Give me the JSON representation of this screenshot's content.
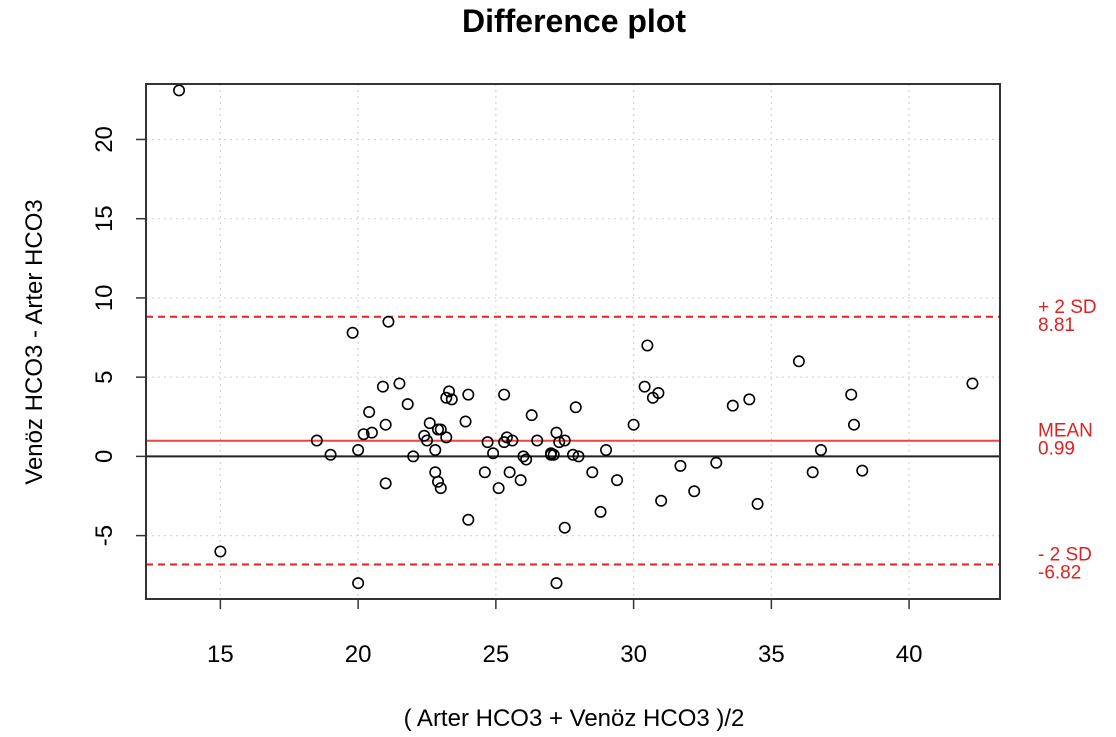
{
  "chart_data": {
    "type": "scatter",
    "title": "Difference plot",
    "xlabel": "( Arter HCO3 + Venöz HCO3 )/2",
    "ylabel": "Venöz HCO3 - Arter HCO3",
    "xlim": [
      12.3,
      43.3
    ],
    "ylim": [
      -9.0,
      23.5
    ],
    "x_ticks": [
      15,
      20,
      25,
      30,
      35,
      40
    ],
    "y_ticks": [
      -5,
      0,
      5,
      10,
      15,
      20
    ],
    "x_tick_labels": [
      "15",
      "20",
      "25",
      "30",
      "35",
      "40"
    ],
    "y_tick_labels": [
      "-5",
      "0",
      "5",
      "10",
      "15",
      "20"
    ],
    "grid": true,
    "zero_line": 0,
    "reference_lines": [
      {
        "label": "+ 2 SD",
        "value_text": "8.81",
        "value": 8.81,
        "style": "dashed",
        "color": "#dd2222"
      },
      {
        "label": "MEAN",
        "value_text": "0.99",
        "value": 0.99,
        "style": "solid",
        "color": "#ee4444"
      },
      {
        "label": "- 2 SD",
        "value_text": "-6.82",
        "value": -6.82,
        "style": "dashed",
        "color": "#dd2222"
      }
    ],
    "points": [
      [
        13.5,
        23.1
      ],
      [
        15.0,
        -6.0
      ],
      [
        18.5,
        1.0
      ],
      [
        19.0,
        0.1
      ],
      [
        19.8,
        7.8
      ],
      [
        20.0,
        0.4
      ],
      [
        20.0,
        -8.0
      ],
      [
        20.2,
        1.4
      ],
      [
        20.4,
        2.8
      ],
      [
        20.5,
        1.5
      ],
      [
        20.9,
        4.4
      ],
      [
        21.0,
        2.0
      ],
      [
        21.0,
        -1.7
      ],
      [
        21.1,
        8.5
      ],
      [
        21.5,
        4.6
      ],
      [
        21.8,
        3.3
      ],
      [
        22.0,
        0.0
      ],
      [
        22.4,
        1.3
      ],
      [
        22.5,
        1.0
      ],
      [
        22.6,
        2.1
      ],
      [
        22.8,
        0.4
      ],
      [
        22.8,
        -1.0
      ],
      [
        22.9,
        -1.6
      ],
      [
        22.9,
        1.7
      ],
      [
        23.0,
        1.7
      ],
      [
        23.0,
        -2.0
      ],
      [
        23.2,
        3.7
      ],
      [
        23.2,
        1.2
      ],
      [
        23.3,
        4.1
      ],
      [
        23.4,
        3.6
      ],
      [
        23.9,
        2.2
      ],
      [
        24.0,
        3.9
      ],
      [
        24.0,
        -4.0
      ],
      [
        24.6,
        -1.0
      ],
      [
        24.7,
        0.9
      ],
      [
        24.9,
        0.2
      ],
      [
        25.1,
        -2.0
      ],
      [
        25.3,
        3.9
      ],
      [
        25.3,
        0.9
      ],
      [
        25.4,
        1.2
      ],
      [
        25.5,
        -1.0
      ],
      [
        25.6,
        1.0
      ],
      [
        25.9,
        -1.5
      ],
      [
        26.0,
        0.0
      ],
      [
        26.1,
        -0.2
      ],
      [
        26.3,
        2.6
      ],
      [
        26.5,
        1.0
      ],
      [
        27.0,
        0.1
      ],
      [
        27.0,
        0.2
      ],
      [
        27.1,
        0.1
      ],
      [
        27.2,
        1.5
      ],
      [
        27.3,
        0.9
      ],
      [
        27.5,
        1.0
      ],
      [
        27.5,
        -4.5
      ],
      [
        27.2,
        -8.0
      ],
      [
        27.8,
        0.1
      ],
      [
        27.9,
        3.1
      ],
      [
        28.0,
        0.0
      ],
      [
        28.5,
        -1.0
      ],
      [
        28.8,
        -3.5
      ],
      [
        29.0,
        0.4
      ],
      [
        29.4,
        -1.5
      ],
      [
        30.0,
        2.0
      ],
      [
        30.4,
        4.4
      ],
      [
        30.5,
        7.0
      ],
      [
        30.7,
        3.7
      ],
      [
        30.9,
        4.0
      ],
      [
        31.0,
        -2.8
      ],
      [
        31.7,
        -0.6
      ],
      [
        32.2,
        -2.2
      ],
      [
        33.0,
        -0.4
      ],
      [
        33.6,
        3.2
      ],
      [
        34.2,
        3.6
      ],
      [
        34.5,
        -3.0
      ],
      [
        36.0,
        6.0
      ],
      [
        36.5,
        -1.0
      ],
      [
        36.8,
        0.4
      ],
      [
        37.9,
        3.9
      ],
      [
        38.0,
        2.0
      ],
      [
        38.3,
        -0.9
      ],
      [
        42.3,
        4.6
      ]
    ]
  }
}
